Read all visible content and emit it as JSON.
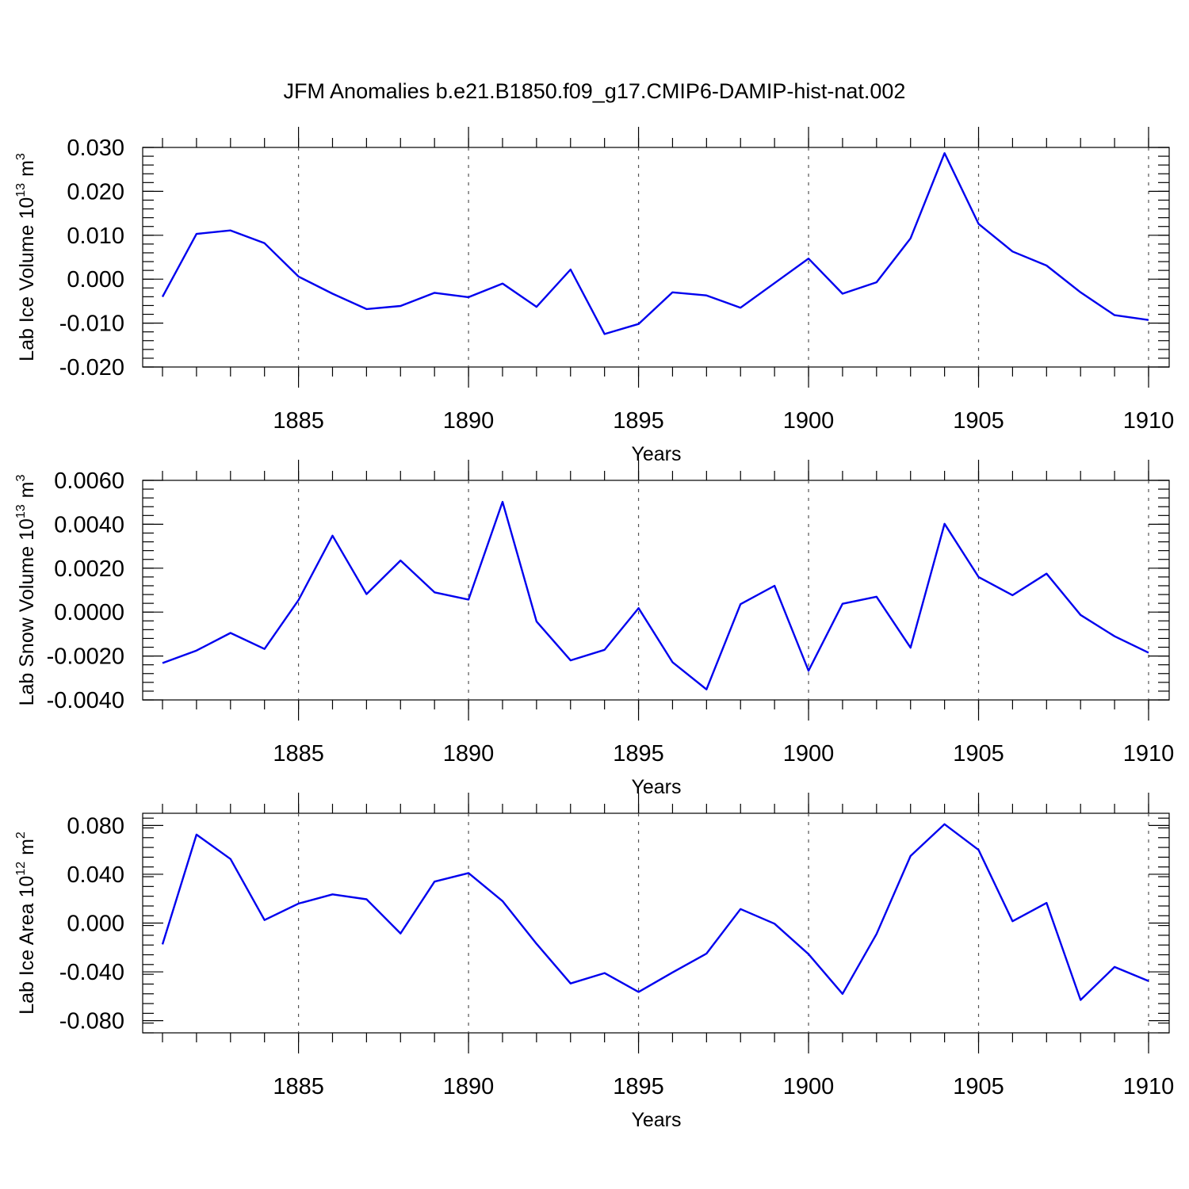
{
  "title": "JFM Anomalies b.e21.B1850.f09_g17.CMIP6-DAMIP-hist-nat.002",
  "chart_data": [
    {
      "type": "line",
      "ylabel": "Lab Ice Volume 10",
      "ylabel_exponent": "13",
      "ylabel_unit": "m",
      "ylabel_unit_exponent": "3",
      "xlabel": "Years",
      "xlim": [
        1881,
        1910
      ],
      "ylim": [
        -0.02,
        0.03
      ],
      "yticks": [
        "0.030",
        "0.020",
        "0.010",
        "0.000",
        "-0.010",
        "-0.020"
      ],
      "ytick_values": [
        0.03,
        0.02,
        0.01,
        0.0,
        -0.01,
        -0.02
      ],
      "xticks": [
        "1885",
        "1890",
        "1895",
        "1900",
        "1905",
        "1910"
      ],
      "xtick_values": [
        1885,
        1890,
        1895,
        1900,
        1905,
        1910
      ],
      "grid": "dashed vertical lines at major x ticks",
      "line_color": "#0000ee",
      "x": [
        1881,
        1882,
        1883,
        1884,
        1885,
        1886,
        1887,
        1888,
        1889,
        1890,
        1891,
        1892,
        1893,
        1894,
        1895,
        1896,
        1897,
        1898,
        1899,
        1900,
        1901,
        1902,
        1903,
        1904,
        1905,
        1906,
        1907,
        1908,
        1909,
        1910
      ],
      "y": [
        -0.004,
        0.0103,
        0.0111,
        0.0082,
        0.0006,
        -0.0033,
        -0.0068,
        -0.0061,
        -0.0031,
        -0.0041,
        -0.001,
        -0.0063,
        0.0022,
        -0.0125,
        -0.0102,
        -0.003,
        -0.0037,
        -0.0065,
        -0.0009,
        0.0047,
        -0.0033,
        -0.0007,
        0.0093,
        0.0287,
        0.0126,
        0.0063,
        0.0031,
        -0.003,
        -0.0082,
        -0.0093
      ]
    },
    {
      "type": "line",
      "ylabel": "Lab Snow Volume 10",
      "ylabel_exponent": "13",
      "ylabel_unit": "m",
      "ylabel_unit_exponent": "3",
      "xlabel": "Years",
      "xlim": [
        1881,
        1910
      ],
      "ylim": [
        -0.004,
        0.006
      ],
      "yticks": [
        "0.0060",
        "0.0040",
        "0.0020",
        "0.0000",
        "-0.0020",
        "-0.0040"
      ],
      "ytick_values": [
        0.006,
        0.004,
        0.002,
        0.0,
        -0.002,
        -0.004
      ],
      "xticks": [
        "1885",
        "1890",
        "1895",
        "1900",
        "1905",
        "1910"
      ],
      "xtick_values": [
        1885,
        1890,
        1895,
        1900,
        1905,
        1910
      ],
      "grid": "dashed vertical lines at major x ticks",
      "line_color": "#0000ee",
      "x": [
        1881,
        1882,
        1883,
        1884,
        1885,
        1886,
        1887,
        1888,
        1889,
        1890,
        1891,
        1892,
        1893,
        1894,
        1895,
        1896,
        1897,
        1898,
        1899,
        1900,
        1901,
        1902,
        1903,
        1904,
        1905,
        1906,
        1907,
        1908,
        1909,
        1910
      ],
      "y": [
        -0.00232,
        -0.00175,
        -0.00095,
        -0.00168,
        0.00055,
        0.00348,
        0.00082,
        0.00235,
        0.0009,
        0.00057,
        0.00502,
        -0.00043,
        -0.0022,
        -0.00172,
        0.00018,
        -0.00228,
        -0.00352,
        0.00036,
        0.0012,
        -0.00267,
        0.00038,
        0.0007,
        -0.00162,
        0.00402,
        0.0016,
        0.00077,
        0.00175,
        -0.00013,
        -0.0011,
        -0.00185
      ]
    },
    {
      "type": "line",
      "ylabel": "Lab Ice Area 10",
      "ylabel_exponent": "12",
      "ylabel_unit": "m",
      "ylabel_unit_exponent": "2",
      "xlabel": "Years",
      "xlim": [
        1881,
        1910
      ],
      "ylim": [
        -0.09,
        0.09
      ],
      "yticks": [
        "0.080",
        "0.040",
        "0.000",
        "-0.040",
        "-0.080"
      ],
      "ytick_values": [
        0.08,
        0.04,
        0.0,
        -0.04,
        -0.08
      ],
      "xticks": [
        "1885",
        "1890",
        "1895",
        "1900",
        "1905",
        "1910"
      ],
      "xtick_values": [
        1885,
        1890,
        1895,
        1900,
        1905,
        1910
      ],
      "grid": "dashed vertical lines at major x ticks",
      "line_color": "#0000ee",
      "x": [
        1881,
        1882,
        1883,
        1884,
        1885,
        1886,
        1887,
        1888,
        1889,
        1890,
        1891,
        1892,
        1893,
        1894,
        1895,
        1896,
        1897,
        1898,
        1899,
        1900,
        1901,
        1902,
        1903,
        1904,
        1905,
        1906,
        1907,
        1908,
        1909,
        1910
      ],
      "y": [
        -0.0175,
        0.0725,
        0.0525,
        0.0025,
        0.016,
        0.0235,
        0.0195,
        -0.0085,
        0.034,
        0.041,
        0.018,
        -0.017,
        -0.0495,
        -0.041,
        -0.0565,
        -0.0405,
        -0.025,
        0.0115,
        -0.0005,
        -0.0255,
        -0.058,
        -0.009,
        0.055,
        0.081,
        0.06,
        0.0015,
        0.0165,
        -0.063,
        -0.036,
        -0.0475
      ]
    }
  ]
}
